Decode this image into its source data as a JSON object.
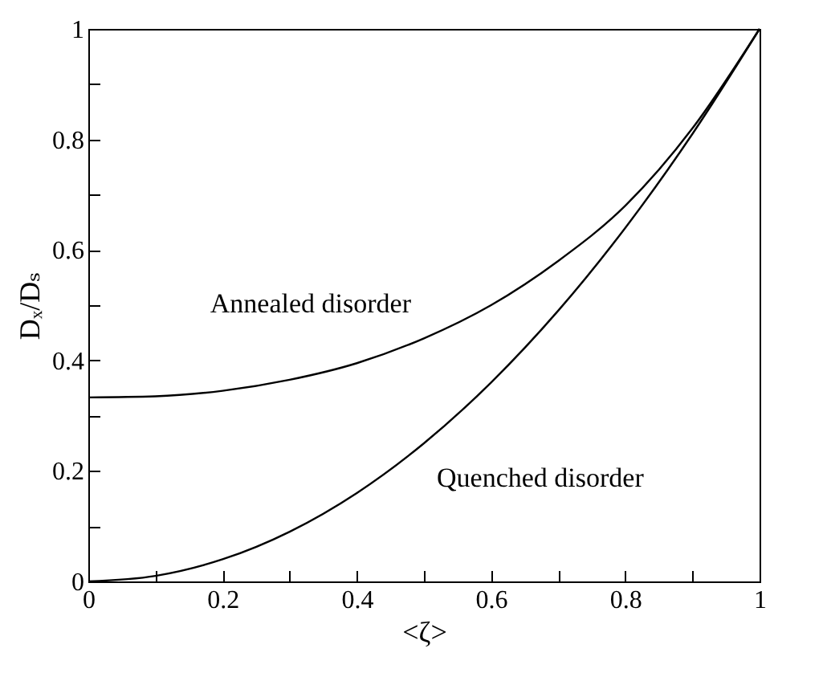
{
  "chart_data": {
    "type": "line",
    "xlabel": "<ζ>",
    "ylabel": "Dₓ/Dₛ",
    "x": [
      0,
      0.1,
      0.2,
      0.3,
      0.4,
      0.5,
      0.6,
      0.7,
      0.8,
      0.9,
      1
    ],
    "series": [
      {
        "name": "Annealed disorder",
        "color": "#000000",
        "values": [
          0.333,
          0.335,
          0.345,
          0.365,
          0.395,
          0.44,
          0.5,
          0.58,
          0.68,
          0.82,
          1
        ]
      },
      {
        "name": "Quenched disorder",
        "color": "#000000",
        "values": [
          0,
          0.01,
          0.04,
          0.09,
          0.16,
          0.25,
          0.36,
          0.49,
          0.64,
          0.81,
          1
        ]
      }
    ],
    "xlim": [
      0,
      1
    ],
    "ylim": [
      0,
      1
    ],
    "xticks": [
      0,
      {
        "value": 0.1,
        "label": null
      },
      0.2,
      {
        "value": 0.3,
        "label": null
      },
      0.4,
      {
        "value": 0.5,
        "label": null
      },
      0.6,
      {
        "value": 0.7,
        "label": null
      },
      0.8,
      {
        "value": 0.9,
        "label": null
      },
      1
    ],
    "yticks": [
      0,
      {
        "value": 0.1,
        "label": null
      },
      0.2,
      {
        "value": 0.3,
        "label": null
      },
      0.4,
      {
        "value": 0.5,
        "label": null
      },
      0.6,
      {
        "value": 0.7,
        "label": null
      },
      0.8,
      {
        "value": 0.9,
        "label": null
      },
      1
    ],
    "grid": false,
    "legend": false,
    "marker": "none",
    "line_style": "solid"
  }
}
